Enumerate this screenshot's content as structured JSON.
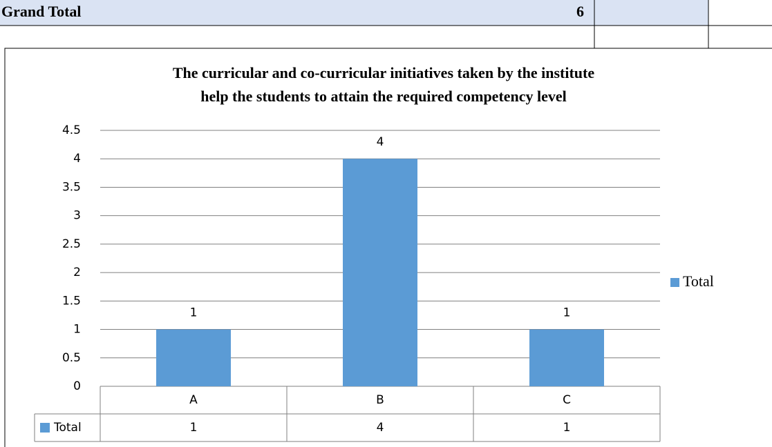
{
  "grand_total": {
    "label": "Grand Total",
    "value": 6
  },
  "chart_data": {
    "type": "bar",
    "title": [
      "The curricular and co-curricular initiatives taken by the institute",
      "help the students to attain the required competency level"
    ],
    "categories": [
      "A",
      "B",
      "C"
    ],
    "series": [
      {
        "name": "Total",
        "color": "#5b9bd5",
        "values": [
          1,
          4,
          1
        ]
      }
    ],
    "ylim": [
      0,
      4.5
    ],
    "yticks": [
      0,
      0.5,
      1,
      1.5,
      2,
      2.5,
      3,
      3.5,
      4,
      4.5
    ],
    "grid": true,
    "legend": "right"
  }
}
